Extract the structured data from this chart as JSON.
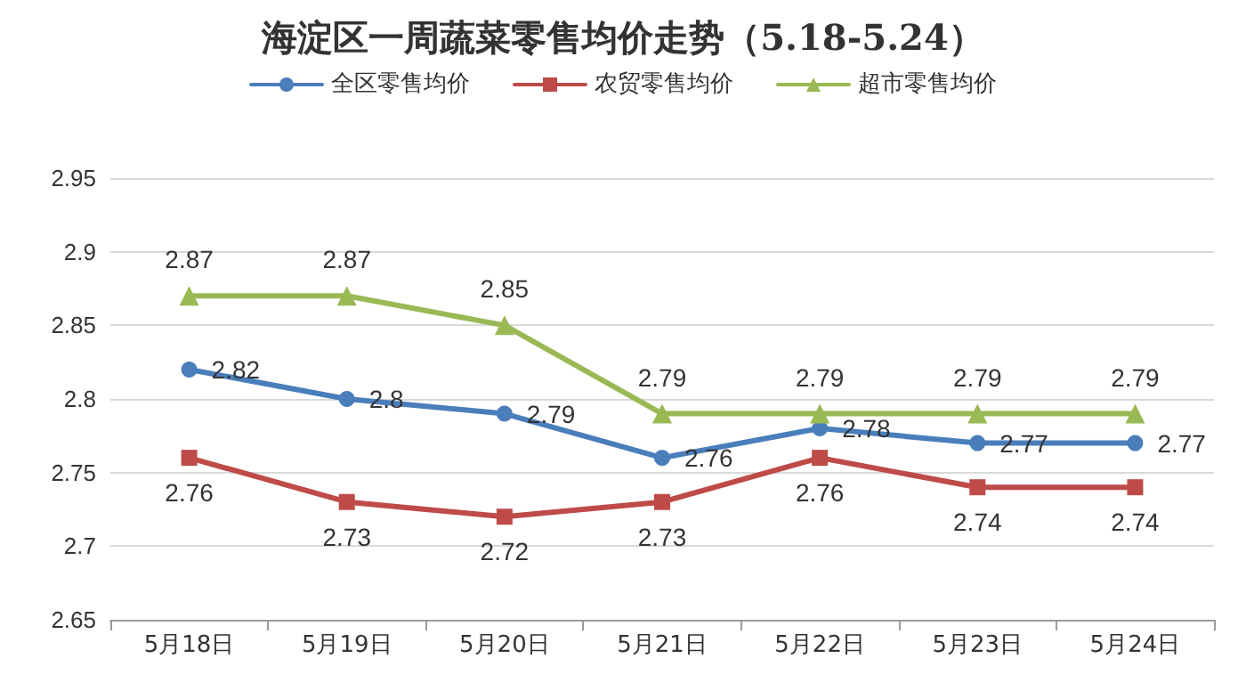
{
  "chart_data": {
    "type": "line",
    "title": "海淀区一周蔬菜零售均价走势（5.18-5.24）",
    "categories": [
      "5月18日",
      "5月19日",
      "5月20日",
      "5月21日",
      "5月22日",
      "5月23日",
      "5月24日"
    ],
    "series": [
      {
        "name": "全区零售均价",
        "color": "#4a7ebb",
        "marker": "circle",
        "values": [
          2.82,
          2.8,
          2.79,
          2.76,
          2.78,
          2.77,
          2.77
        ]
      },
      {
        "name": "农贸零售均价",
        "color": "#be4b48",
        "marker": "square",
        "values": [
          2.76,
          2.73,
          2.72,
          2.73,
          2.76,
          2.74,
          2.74
        ]
      },
      {
        "name": "超市零售均价",
        "color": "#98b954",
        "marker": "triangle",
        "values": [
          2.87,
          2.87,
          2.85,
          2.79,
          2.79,
          2.79,
          2.79
        ]
      }
    ],
    "ylim": [
      2.65,
      2.95
    ],
    "yticks": [
      2.65,
      2.7,
      2.75,
      2.8,
      2.85,
      2.9,
      2.95
    ],
    "grid": "y",
    "legend": "top",
    "data_labels": true,
    "line_style": "solid"
  }
}
